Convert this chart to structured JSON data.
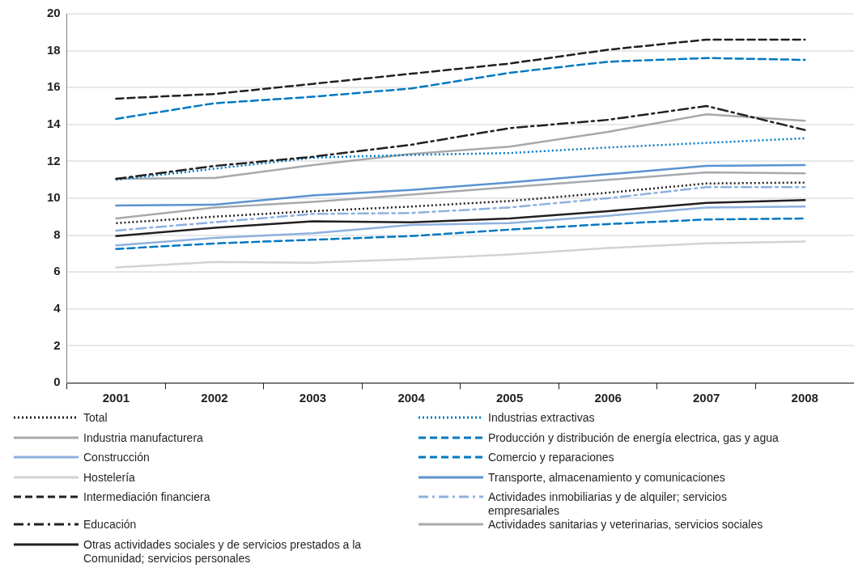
{
  "chart_data": {
    "type": "line",
    "categories": [
      "2001",
      "2002",
      "2003",
      "2004",
      "2005",
      "2006",
      "2007",
      "2008"
    ],
    "ylim": [
      0,
      20
    ],
    "yticks": [
      0,
      2,
      4,
      6,
      8,
      10,
      12,
      14,
      16,
      18,
      20
    ],
    "grid": "y",
    "legend": "bottom",
    "marker": "none",
    "series": [
      {
        "name": "Total",
        "color": "#231f20",
        "line_style": "dotted",
        "values": [
          8.65,
          9.0,
          9.3,
          9.55,
          9.85,
          10.3,
          10.8,
          10.85
        ]
      },
      {
        "name": "Industria manufacturera",
        "color": "#a7a9ac",
        "line_style": "solid",
        "values": [
          8.9,
          9.5,
          9.8,
          10.2,
          10.6,
          11.0,
          11.4,
          11.35
        ]
      },
      {
        "name": "Construcción",
        "color": "#8eb1de",
        "line_style": "solid",
        "values": [
          7.45,
          7.85,
          8.1,
          8.55,
          8.65,
          9.05,
          9.5,
          9.55
        ]
      },
      {
        "name": "Hostelería",
        "color": "#d1d3d4",
        "line_style": "solid",
        "values": [
          6.25,
          6.55,
          6.5,
          6.7,
          6.95,
          7.3,
          7.55,
          7.65
        ]
      },
      {
        "name": "Intermediación financiera",
        "color": "#231f20",
        "line_style": "dashed",
        "values": [
          15.4,
          15.65,
          16.2,
          16.75,
          17.3,
          18.05,
          18.6,
          18.6
        ]
      },
      {
        "name": "Educación",
        "color": "#231f20",
        "line_style": "dashdot",
        "values": [
          11.05,
          11.75,
          12.25,
          12.9,
          13.8,
          14.25,
          15.0,
          13.7
        ]
      },
      {
        "name": "Otras actividades sociales y de servicios prestados a la Comunidad; servicios personales",
        "color": "#231f20",
        "line_style": "solid",
        "values": [
          7.95,
          8.4,
          8.75,
          8.7,
          8.9,
          9.3,
          9.75,
          9.9
        ]
      },
      {
        "name": "Industrias extractivas",
        "color": "#0079c1",
        "line_style": "dotted",
        "values": [
          11.0,
          11.6,
          12.2,
          12.35,
          12.45,
          12.75,
          13.0,
          13.25
        ]
      },
      {
        "name": "Producción y distribución de energía electrica, gas y agua",
        "color": "#0079c1",
        "line_style": "dashed",
        "values": [
          14.3,
          15.15,
          15.5,
          15.95,
          16.8,
          17.4,
          17.6,
          17.5
        ]
      },
      {
        "name": "Comercio y reparaciones",
        "color": "#0079c1",
        "line_style": "dashed",
        "values": [
          7.25,
          7.55,
          7.75,
          7.95,
          8.3,
          8.6,
          8.85,
          8.9
        ]
      },
      {
        "name": "Transporte, almacenamiento y comunicaciones",
        "color": "#5b93d0",
        "line_style": "solid",
        "values": [
          9.6,
          9.65,
          10.15,
          10.45,
          10.85,
          11.3,
          11.75,
          11.8
        ]
      },
      {
        "name": "Actividades inmobiliarias y de alquiler; servicios empresariales",
        "color": "#8eb1de",
        "line_style": "dashdot",
        "values": [
          8.25,
          8.7,
          9.15,
          9.2,
          9.5,
          10.0,
          10.6,
          10.6
        ]
      },
      {
        "name": "Actividades sanitarias y veterinarias, servicios sociales",
        "color": "#a7a9ac",
        "line_style": "solid",
        "values": [
          11.05,
          11.1,
          11.8,
          12.4,
          12.8,
          13.6,
          14.55,
          14.2
        ]
      }
    ]
  }
}
